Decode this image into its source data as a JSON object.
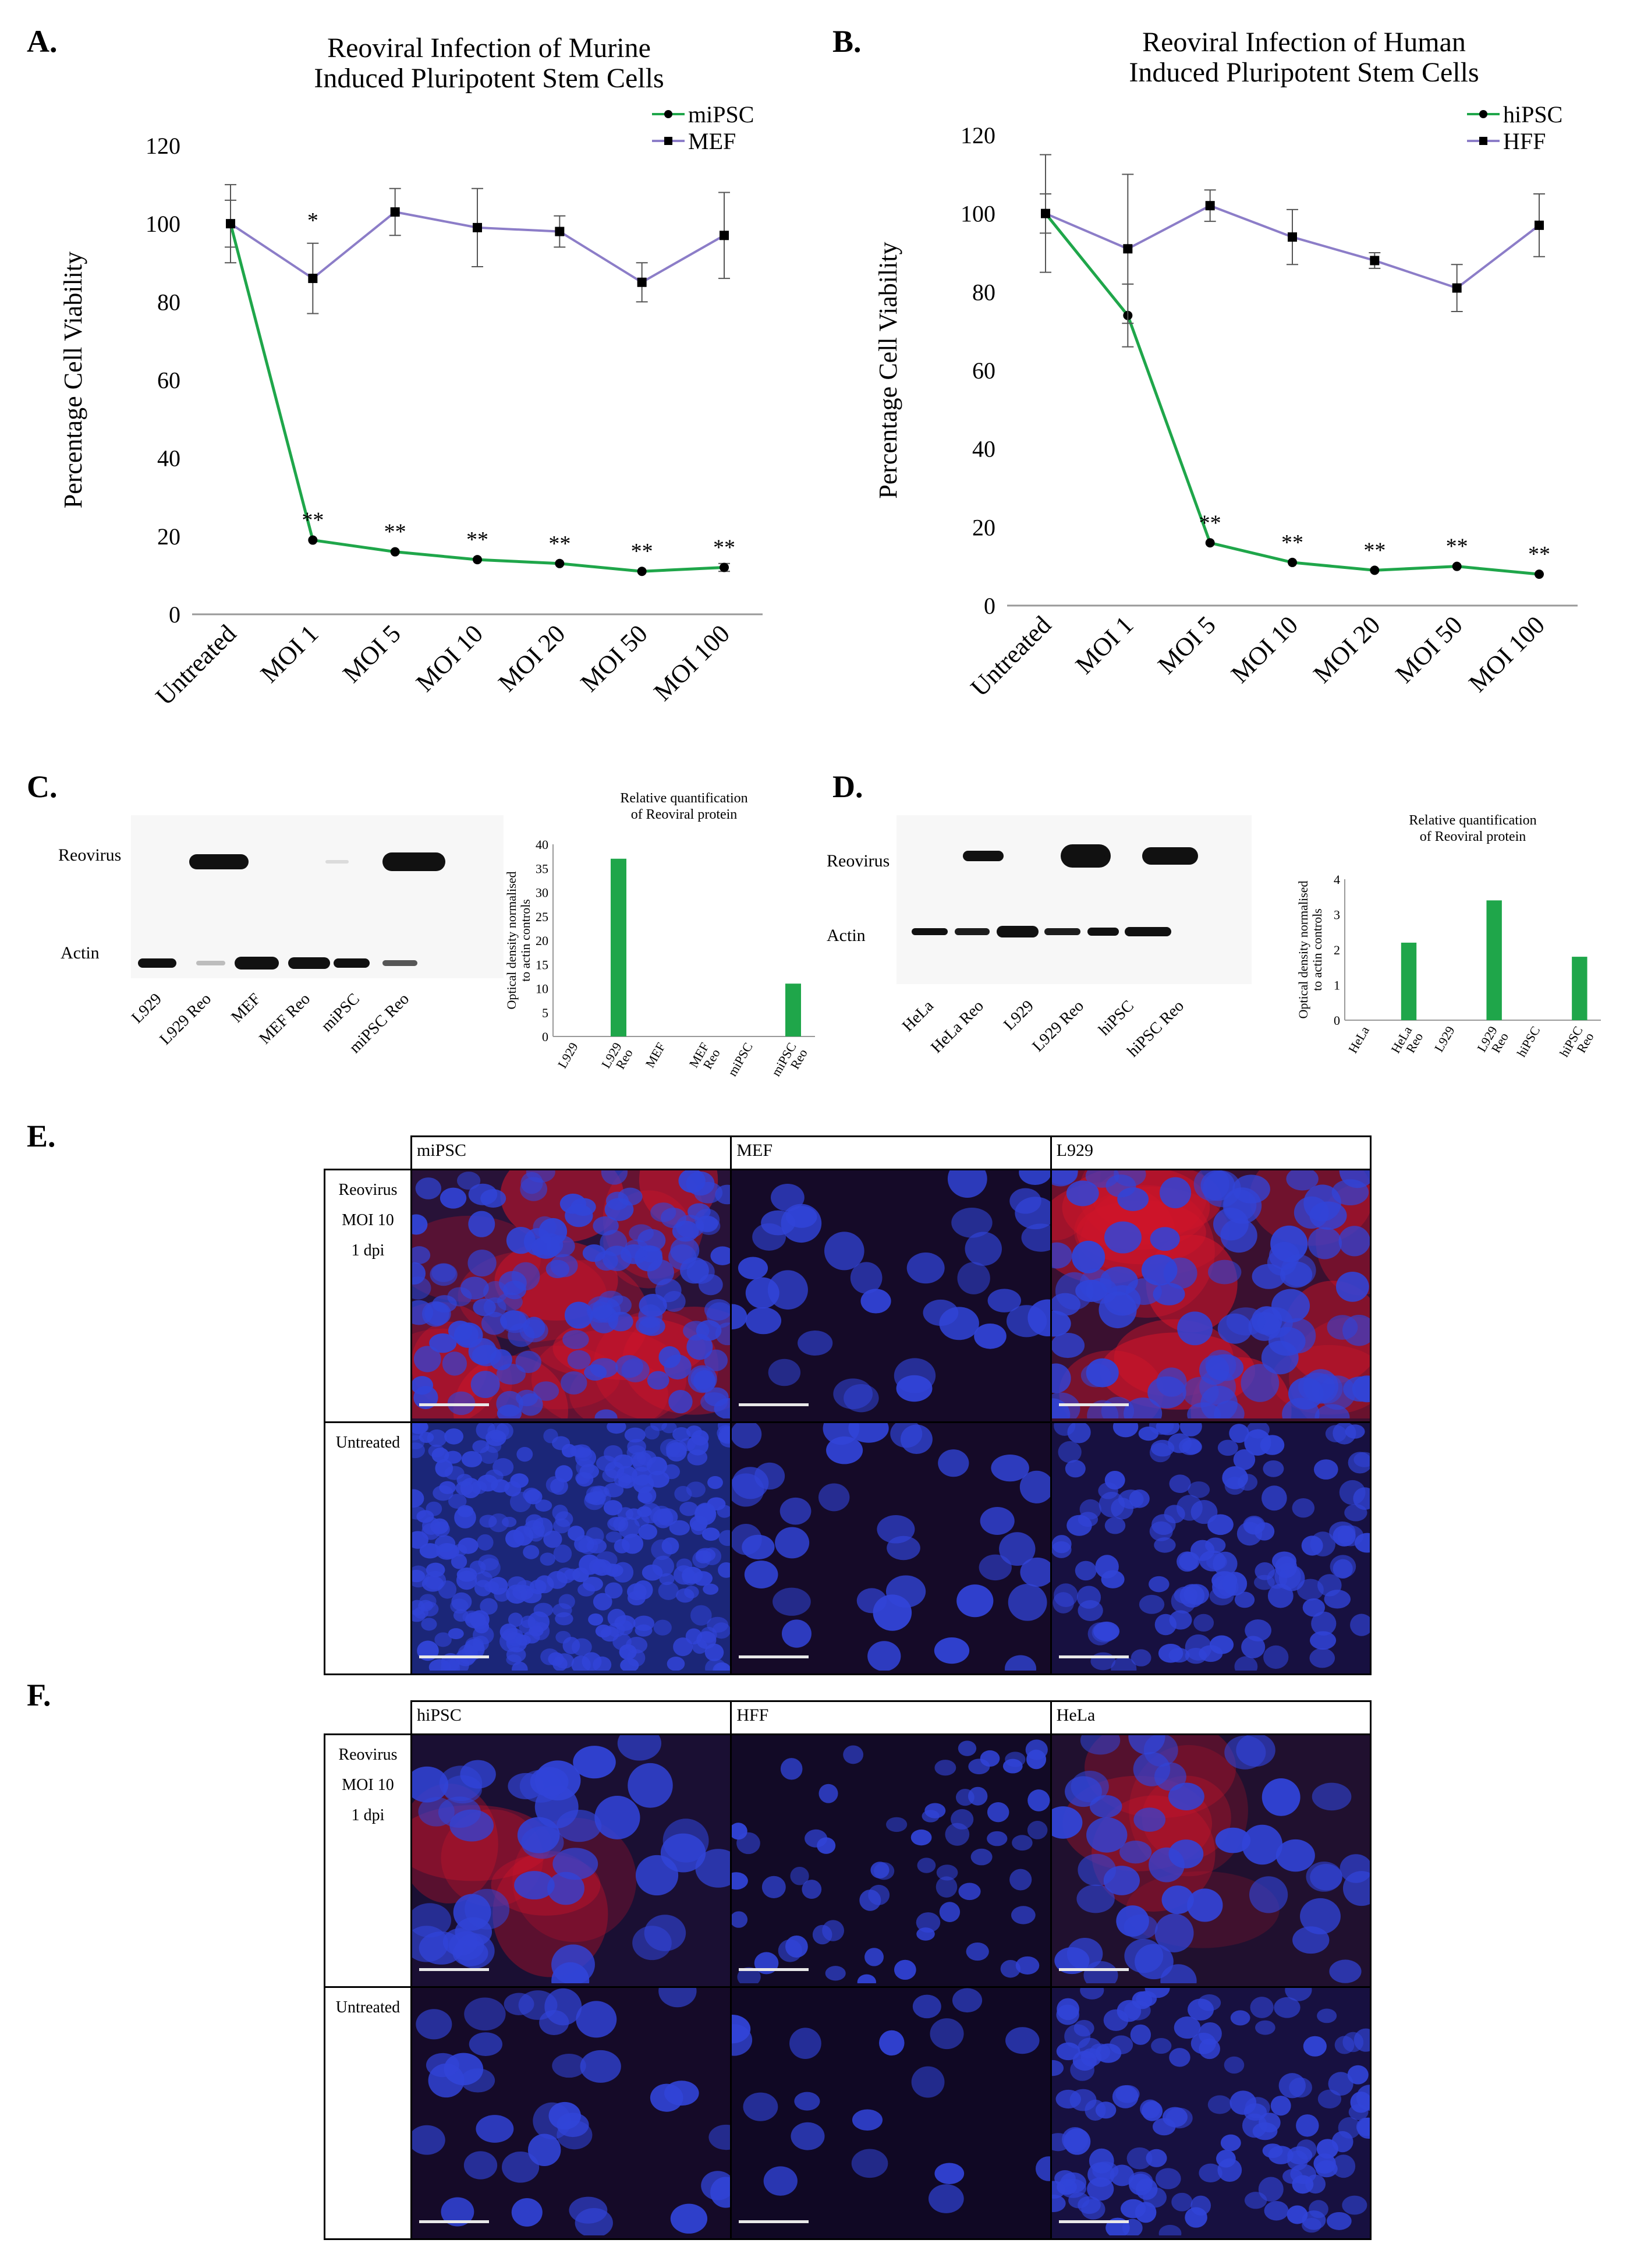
{
  "panels": {
    "A": "A.",
    "B": "B.",
    "C": "C.",
    "D": "D.",
    "E": "E.",
    "F": "F."
  },
  "colors": {
    "green": "#1fa64a",
    "purple": "#8c7dc8",
    "red": "#d1152a",
    "blue": "#2a3dc4"
  },
  "chart_data": [
    {
      "id": "A",
      "type": "line",
      "title": "Reoviral Infection of Murine\nInduced Pluripotent Stem Cells",
      "ylabel": "Percentage Cell Viability",
      "ylim": [
        0,
        120
      ],
      "yticks": [
        0,
        20,
        40,
        60,
        80,
        100,
        120
      ],
      "categories": [
        "Untreated",
        "MOI 1",
        "MOI 5",
        "MOI 10",
        "MOI 20",
        "MOI 50",
        "MOI 100"
      ],
      "legend": "top-right",
      "series": [
        {
          "name": "miPSC",
          "color": "#1fa64a",
          "marker": "circle",
          "values": [
            100,
            19,
            16,
            14,
            13,
            11,
            12
          ],
          "errors": [
            6,
            0,
            0,
            0,
            0,
            0,
            1
          ]
        },
        {
          "name": "MEF",
          "color": "#8c7dc8",
          "marker": "square",
          "values": [
            100,
            86,
            103,
            99,
            98,
            85,
            97
          ],
          "errors": [
            10,
            9,
            6,
            10,
            4,
            5,
            11
          ]
        }
      ],
      "annotations": [
        {
          "series": "MEF",
          "index": 1,
          "text": "*"
        },
        {
          "series": "miPSC",
          "index": 1,
          "text": "**"
        },
        {
          "series": "miPSC",
          "index": 2,
          "text": "**"
        },
        {
          "series": "miPSC",
          "index": 3,
          "text": "**"
        },
        {
          "series": "miPSC",
          "index": 4,
          "text": "**"
        },
        {
          "series": "miPSC",
          "index": 5,
          "text": "**"
        },
        {
          "series": "miPSC",
          "index": 6,
          "text": "**"
        }
      ]
    },
    {
      "id": "B",
      "type": "line",
      "title": "Reoviral Infection of Human\nInduced Pluripotent Stem Cells",
      "ylabel": "Percentage Cell Viability",
      "ylim": [
        0,
        120
      ],
      "yticks": [
        0,
        20,
        40,
        60,
        80,
        100,
        120
      ],
      "categories": [
        "Untreated",
        "MOI 1",
        "MOI 5",
        "MOI 10",
        "MOI 20",
        "MOI 50",
        "MOI 100"
      ],
      "legend": "top-right",
      "series": [
        {
          "name": "hiPSC",
          "color": "#1fa64a",
          "marker": "circle",
          "values": [
            100,
            74,
            16,
            11,
            9,
            10,
            8
          ],
          "errors": [
            15,
            8,
            0,
            0,
            0,
            0,
            0
          ]
        },
        {
          "name": "HFF",
          "color": "#8c7dc8",
          "marker": "square",
          "values": [
            100,
            91,
            102,
            94,
            88,
            81,
            97
          ],
          "errors": [
            5,
            19,
            4,
            7,
            2,
            6,
            8
          ]
        }
      ],
      "annotations": [
        {
          "series": "hiPSC",
          "index": 2,
          "text": "**"
        },
        {
          "series": "hiPSC",
          "index": 3,
          "text": "**"
        },
        {
          "series": "hiPSC",
          "index": 4,
          "text": "**"
        },
        {
          "series": "hiPSC",
          "index": 5,
          "text": "**"
        },
        {
          "series": "hiPSC",
          "index": 6,
          "text": "**"
        }
      ]
    },
    {
      "id": "C",
      "type": "bar",
      "title": "Relative quantification\nof Reoviral protein",
      "ylabel": "Optical density normalised\nto actin controls",
      "ylim": [
        0,
        40
      ],
      "yticks": [
        0,
        5,
        10,
        15,
        20,
        25,
        30,
        35,
        40
      ],
      "categories": [
        "L929",
        "L929\nReo",
        "MEF",
        "MEF\nReo",
        "miPSC",
        "miPSC\nReo"
      ],
      "values": [
        0,
        37,
        0,
        0,
        0,
        11
      ],
      "color": "#1fa64a"
    },
    {
      "id": "D",
      "type": "bar",
      "title": "Relative quantification\nof Reoviral protein",
      "ylabel": "Optical density normalised\nto actin controls",
      "ylim": [
        0,
        4
      ],
      "yticks": [
        0,
        1,
        2,
        3,
        4
      ],
      "categories": [
        "HeLa",
        "HeLa\nReo",
        "L929",
        "L929\nReo",
        "hiPSC",
        "hiPSC\nReo"
      ],
      "values": [
        0,
        2.2,
        0,
        3.4,
        0,
        1.8
      ],
      "color": "#1fa64a"
    }
  ],
  "blots": {
    "C": {
      "rows": [
        "Reovirus",
        "Actin"
      ],
      "lanes": [
        "L929",
        "L929 Reo",
        "MEF",
        "MEF Reo",
        "miPSC",
        "miPSC Reo"
      ]
    },
    "D": {
      "rows": [
        "Reovirus",
        "Actin"
      ],
      "lanes": [
        "HeLa",
        "HeLa Reo",
        "L929",
        "L929 Reo",
        "hiPSC",
        "hiPSC Reo"
      ]
    }
  },
  "micrographs": {
    "E": {
      "columns": [
        "miPSC",
        "MEF",
        "L929"
      ],
      "rows": [
        "Reovirus\nMOI 10\n1 dpi",
        "Untreated"
      ]
    },
    "F": {
      "columns": [
        "hiPSC",
        "HFF",
        "HeLa"
      ],
      "rows": [
        "Reovirus\nMOI 10\n1 dpi",
        "Untreated"
      ]
    }
  }
}
